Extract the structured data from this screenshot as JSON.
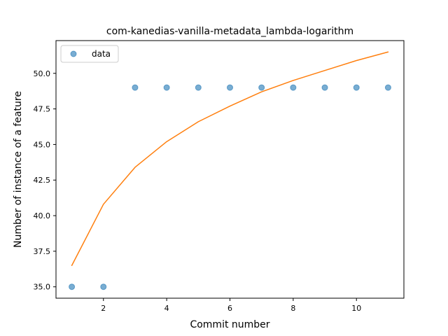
{
  "chart_data": {
    "type": "scatter",
    "title": "com-kanedias-vanilla-metadata_lambda-logarithm",
    "xlabel": "Commit number",
    "ylabel": "Number of instance of a feature",
    "xlim": [
      0.5,
      11.5
    ],
    "ylim": [
      34.2,
      52.3
    ],
    "xticks": [
      2,
      4,
      6,
      8,
      10
    ],
    "yticks": [
      35.0,
      37.5,
      40.0,
      42.5,
      45.0,
      47.5,
      50.0
    ],
    "series": [
      {
        "name": "data",
        "kind": "scatter",
        "color": "#1f77b4",
        "x": [
          1,
          2,
          3,
          4,
          5,
          6,
          7,
          8,
          9,
          10,
          11
        ],
        "y": [
          35,
          35,
          49,
          49,
          49,
          49,
          49,
          49,
          49,
          49,
          49
        ]
      },
      {
        "kind": "line",
        "color": "#ff7f0e",
        "x": [
          1,
          2,
          3,
          4,
          5,
          6,
          7,
          8,
          9,
          10,
          11
        ],
        "y": [
          36.5,
          40.8,
          43.4,
          45.2,
          46.6,
          47.7,
          48.7,
          49.5,
          50.2,
          50.9,
          51.5
        ]
      }
    ],
    "legend": {
      "position": "upper-left",
      "entries": [
        "data"
      ]
    },
    "grid": false
  }
}
